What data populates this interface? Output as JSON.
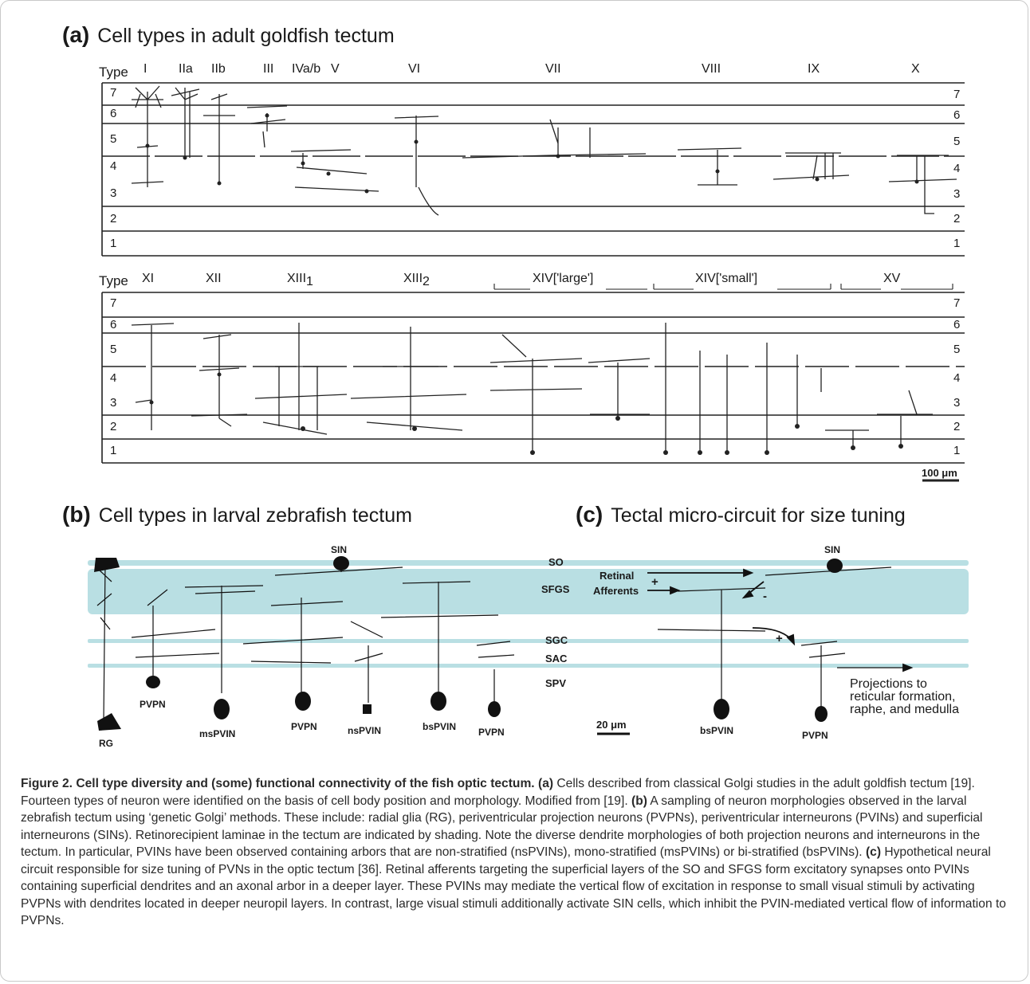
{
  "panel_a": {
    "letter": "(a)",
    "title": "Cell types in adult goldfish tectum",
    "type_word": "Type",
    "top_types": [
      "I",
      "IIa",
      "IIb",
      "III",
      "IVa/b",
      "V",
      "VI",
      "VII",
      "VIII",
      "IX",
      "X"
    ],
    "bottom_types": [
      "XI",
      "XII",
      "XIII",
      "XIII",
      "XIV['large']",
      "XIV['small']",
      "XV"
    ],
    "subscripts": [
      "1",
      "2"
    ],
    "layers": [
      "7",
      "6",
      "5",
      "4",
      "3",
      "2",
      "1"
    ],
    "scale": "100 μm"
  },
  "panel_b": {
    "letter": "(b)",
    "title": "Cell types in larval zebrafish tectum",
    "layers": [
      "SO",
      "SFGS",
      "SGC",
      "SAC",
      "SPV"
    ],
    "cells": [
      "SIN",
      "PVPN",
      "RG",
      "msPVIN",
      "PVPN",
      "nsPVIN",
      "bsPVIN",
      "PVPN"
    ],
    "scale": "20 μm"
  },
  "panel_c": {
    "letter": "(c)",
    "title": "Tectal micro-circuit for size tuning",
    "sin": "SIN",
    "retinal_1": "Retinal",
    "retinal_2": "Afferents",
    "plus_1": "+",
    "minus": "-",
    "plus_2": "+",
    "bspvin": "bsPVIN",
    "pvpn": "PVPN",
    "proj_1": "Projections to",
    "proj_2": "reticular formation,",
    "proj_3": "raphe, and medulla"
  },
  "caption": {
    "title": "Figure 2. Cell type diversity and (some) functional connectivity of the fish optic tectum.",
    "a_label": "(a)",
    "a_text": "Cells described from classical Golgi studies in the adult goldfish tectum [19]. Fourteen types of neuron were identified on the basis of cell body position and morphology. Modified from [19].",
    "b_label": "(b)",
    "b_text": "A sampling of neuron morphologies observed in the larval zebrafish tectum using ‘genetic Golgi’ methods. These include: radial glia (RG), periventricular projection neurons (PVPNs), periventricular interneurons (PVINs) and superficial interneurons (SINs). Retinorecipient laminae in the tectum are indicated by shading. Note the diverse dendrite morphologies of both projection neurons and interneurons in the tectum. In particular, PVINs have been observed containing arbors that are non-stratified (nsPVINs), mono-stratified (msPVINs) or bi-stratified (bsPVINs).",
    "c_label": "(c)",
    "c_text": "Hypothetical neural circuit responsible for size tuning of PVNs in the optic tectum [36]. Retinal afferents targeting the superficial layers of the SO and SFGS form excitatory synapses onto PVINs containing superficial dendrites and an axonal arbor in a deeper layer. These PVINs may mediate the vertical flow of excitation in response to small visual stimuli by activating PVPNs with dendrites located in deeper neuropil layers. In contrast, large visual stimuli additionally activate SIN cells, which inhibit the PVIN-mediated vertical flow of information to PVPNs."
  },
  "colors": {
    "shading": "#b9dfe3",
    "line": "#222222"
  }
}
